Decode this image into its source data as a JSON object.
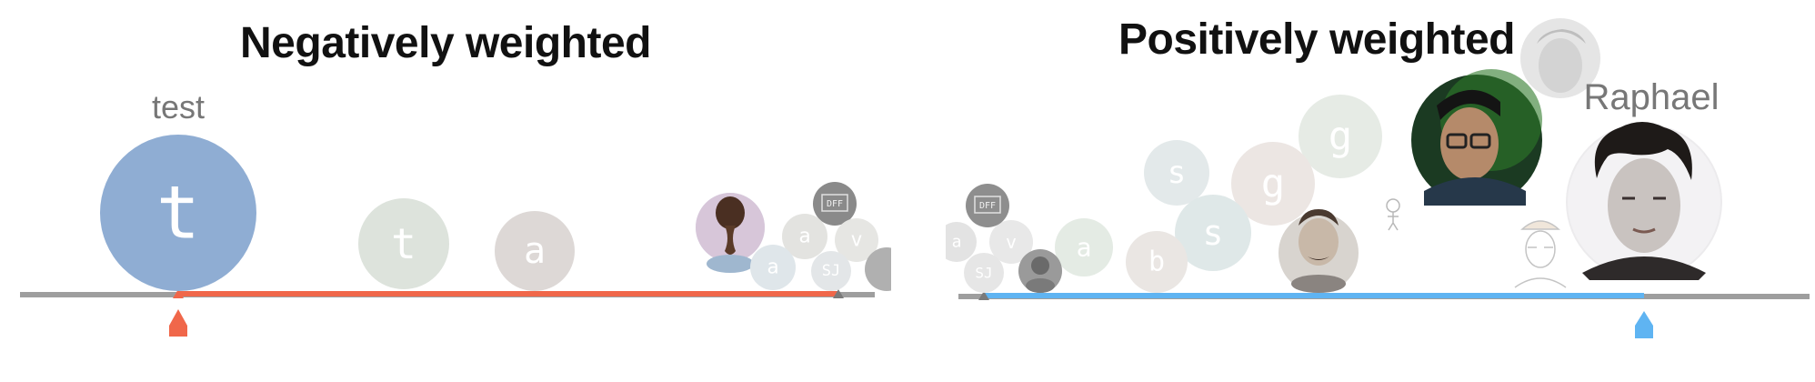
{
  "panels": {
    "negative": {
      "title": "Negatively weighted",
      "accent": "#f0674a",
      "featured_label": "test",
      "bubbles": [
        {
          "letter": "t",
          "color": "#8fadd3",
          "role": "featured"
        },
        {
          "letter": "t",
          "color": "#dde3dc"
        },
        {
          "letter": "a",
          "color": "#ddd8d6"
        },
        {
          "letter": "a",
          "color": "#e3e3e0"
        },
        {
          "letter": "v",
          "color": "#e6e6e3"
        },
        {
          "letter": "a",
          "color": "#dfe6ea"
        },
        {
          "letter": "SJ",
          "color": "#e3e6e8"
        }
      ],
      "avatars": [
        "braid-photo-avatar",
        "dff-logo-avatar"
      ]
    },
    "positive": {
      "title": "Positively weighted",
      "accent": "#5fb4f2",
      "featured_label": "Raphael",
      "bubbles": [
        {
          "letter": "s",
          "color": "#e3e9ea"
        },
        {
          "letter": "g",
          "color": "#e6ebe5"
        },
        {
          "letter": "g",
          "color": "#ece6e3"
        },
        {
          "letter": "s",
          "color": "#dfe8e8"
        },
        {
          "letter": "a",
          "color": "#e4ebe4"
        },
        {
          "letter": "b",
          "color": "#eae6e3"
        },
        {
          "letter": "a",
          "color": "#e3e3e3"
        },
        {
          "letter": "v",
          "color": "#e8e8e8"
        },
        {
          "letter": "SJ",
          "color": "#e6e6e6"
        }
      ],
      "avatars": [
        "dff-logo-avatar",
        "cartoon-avatar",
        "mustache-photo-avatar",
        "sketch-avatar",
        "glasses-photo-avatar",
        "faded-photo-avatar",
        "raphael-photo-avatar"
      ]
    }
  }
}
